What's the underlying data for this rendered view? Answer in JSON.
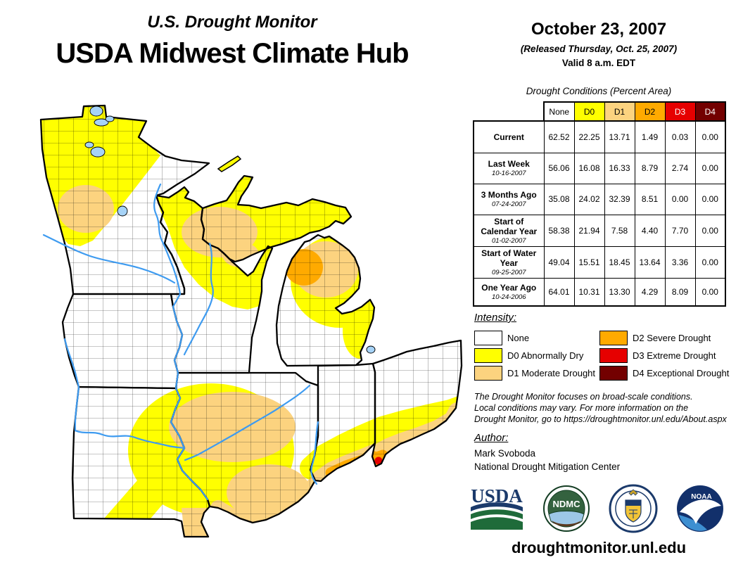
{
  "page": {
    "title_small": "U.S. Drought Monitor",
    "title_large": "USDA Midwest Climate Hub"
  },
  "release": {
    "date": "October 23, 2007",
    "released": "(Released Thursday, Oct. 25, 2007)",
    "valid": "Valid 8 a.m. EDT"
  },
  "table": {
    "title": "Drought Conditions (Percent Area)",
    "columns": [
      {
        "label": "None",
        "bg": "#FFFFFF",
        "fg": "#000000"
      },
      {
        "label": "D0",
        "bg": "#FFFF00",
        "fg": "#000000"
      },
      {
        "label": "D1",
        "bg": "#FCD37F",
        "fg": "#000000"
      },
      {
        "label": "D2",
        "bg": "#FFAA00",
        "fg": "#000000"
      },
      {
        "label": "D3",
        "bg": "#E60000",
        "fg": "#FFFFFF"
      },
      {
        "label": "D4",
        "bg": "#730000",
        "fg": "#FFFFFF"
      }
    ],
    "rows": [
      {
        "label": "Current",
        "date": "",
        "values": [
          "62.52",
          "22.25",
          "13.71",
          "1.49",
          "0.03",
          "0.00"
        ]
      },
      {
        "label": "Last Week",
        "date": "10-16-2007",
        "values": [
          "56.06",
          "16.08",
          "16.33",
          "8.79",
          "2.74",
          "0.00"
        ]
      },
      {
        "label": "3 Months Ago",
        "date": "07-24-2007",
        "values": [
          "35.08",
          "24.02",
          "32.39",
          "8.51",
          "0.00",
          "0.00"
        ]
      },
      {
        "label": "Start of Calendar Year",
        "date": "01-02-2007",
        "values": [
          "58.38",
          "21.94",
          "7.58",
          "4.40",
          "7.70",
          "0.00"
        ]
      },
      {
        "label": "Start of Water Year",
        "date": "09-25-2007",
        "values": [
          "49.04",
          "15.51",
          "18.45",
          "13.64",
          "3.36",
          "0.00"
        ]
      },
      {
        "label": "One Year Ago",
        "date": "10-24-2006",
        "values": [
          "64.01",
          "10.31",
          "13.30",
          "4.29",
          "8.09",
          "0.00"
        ]
      }
    ]
  },
  "legend": {
    "heading": "Intensity:",
    "items": [
      {
        "label": "None",
        "color": "#FFFFFF"
      },
      {
        "label": "D0 Abnormally Dry",
        "color": "#FFFF00"
      },
      {
        "label": "D1 Moderate Drought",
        "color": "#FCD37F"
      },
      {
        "label": "D2 Severe Drought",
        "color": "#FFAA00"
      },
      {
        "label": "D3 Extreme Drought",
        "color": "#E60000"
      },
      {
        "label": "D4 Exceptional Drought",
        "color": "#730000"
      }
    ]
  },
  "disclaimer": {
    "lines": [
      "The Drought Monitor focuses on broad-scale conditions.",
      "Local conditions may vary. For more information on the",
      "Drought Monitor, go to https://droughtmonitor.unl.edu/About.aspx"
    ]
  },
  "author": {
    "heading": "Author:",
    "name": "Mark Svoboda",
    "org": "National Drought Mitigation Center"
  },
  "logos": {
    "usda": "USDA",
    "ndmc": "NDMC",
    "noaa": "NOAA"
  },
  "footer": {
    "url": "droughtmonitor.unl.edu"
  },
  "map": {
    "colors": {
      "none": "#FFFFFF",
      "d0": "#FFFF00",
      "d1": "#FCD37F",
      "d2": "#FFAA00",
      "d3": "#E60000",
      "d4": "#730000",
      "river": "#3E9BF0",
      "lake": "#A6D3F7",
      "border": "#000000"
    }
  }
}
